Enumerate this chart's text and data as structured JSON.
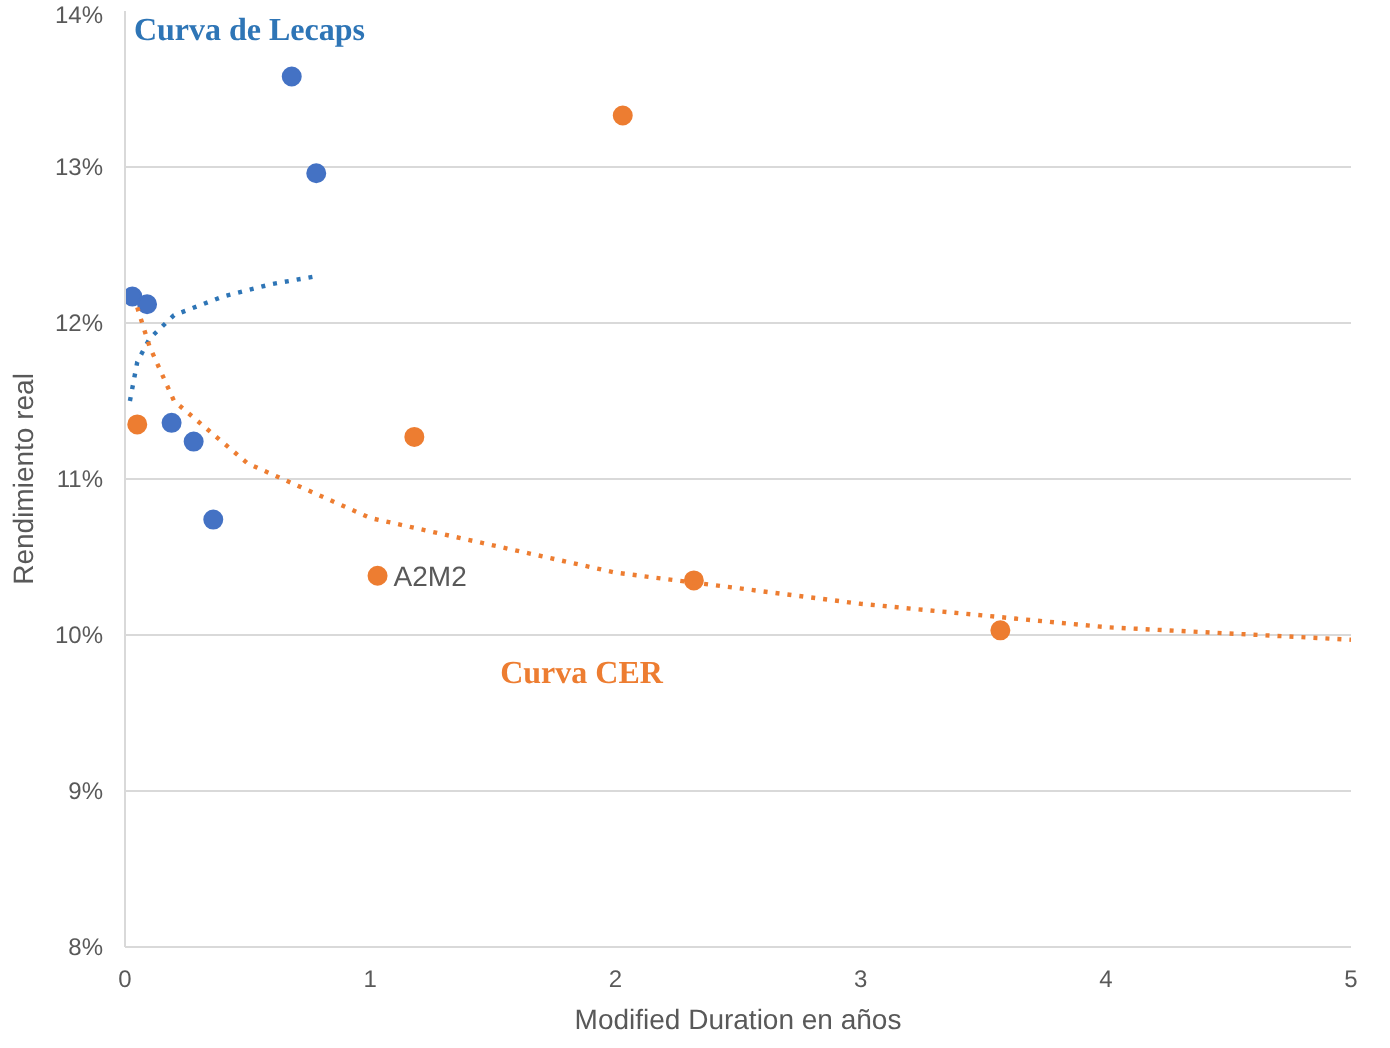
{
  "chart_data": {
    "type": "scatter",
    "xlabel": "Modified Duration en años",
    "ylabel": "Rendimiento real",
    "xlim": [
      0,
      5
    ],
    "xticks": [
      0,
      1,
      2,
      3,
      4,
      5
    ],
    "ylim": [
      8,
      14
    ],
    "yticks": [
      {
        "value": 8,
        "label": "8%"
      },
      {
        "value": 9,
        "label": "9%"
      },
      {
        "value": 10,
        "label": "10%"
      },
      {
        "value": 11,
        "label": "11%"
      },
      {
        "value": 12,
        "label": "12%"
      },
      {
        "value": 13,
        "label": "13%"
      },
      {
        "value": 14,
        "label": "14%"
      }
    ],
    "grid": "y",
    "marker": "circle",
    "series": [
      {
        "color": "#4472c4",
        "x": [
          0.03,
          0.09,
          0.19,
          0.28,
          0.36,
          0.68,
          0.78
        ],
        "values": [
          12.17,
          12.12,
          11.36,
          11.24,
          10.74,
          13.58,
          12.96
        ]
      },
      {
        "color": "#ed7d31",
        "x": [
          0.05,
          1.03,
          1.18,
          2.03,
          2.32,
          3.57
        ],
        "values": [
          11.35,
          10.38,
          11.27,
          13.33,
          10.35,
          10.03
        ]
      },
      {
        "type": "line",
        "name": "Curva de Lecaps",
        "marker": "none",
        "line_style": "dotted",
        "color": "#2e75b6",
        "x": [
          0.02,
          0.05,
          0.1,
          0.2,
          0.4,
          0.6,
          0.78
        ],
        "values": [
          11.5,
          11.75,
          11.9,
          12.05,
          12.17,
          12.25,
          12.3
        ]
      },
      {
        "type": "line",
        "name": "Curva CER",
        "marker": "none",
        "line_style": "dotted",
        "color": "#ed7d31",
        "x": [
          0.05,
          0.1,
          0.2,
          0.5,
          1,
          2,
          3,
          4,
          5
        ],
        "values": [
          12.1,
          11.85,
          11.5,
          11.1,
          10.75,
          10.4,
          10.2,
          10.05,
          9.97
        ]
      }
    ],
    "annotations": [
      {
        "text": "A2M2",
        "x": 1.03,
        "y": 10.38
      }
    ]
  }
}
